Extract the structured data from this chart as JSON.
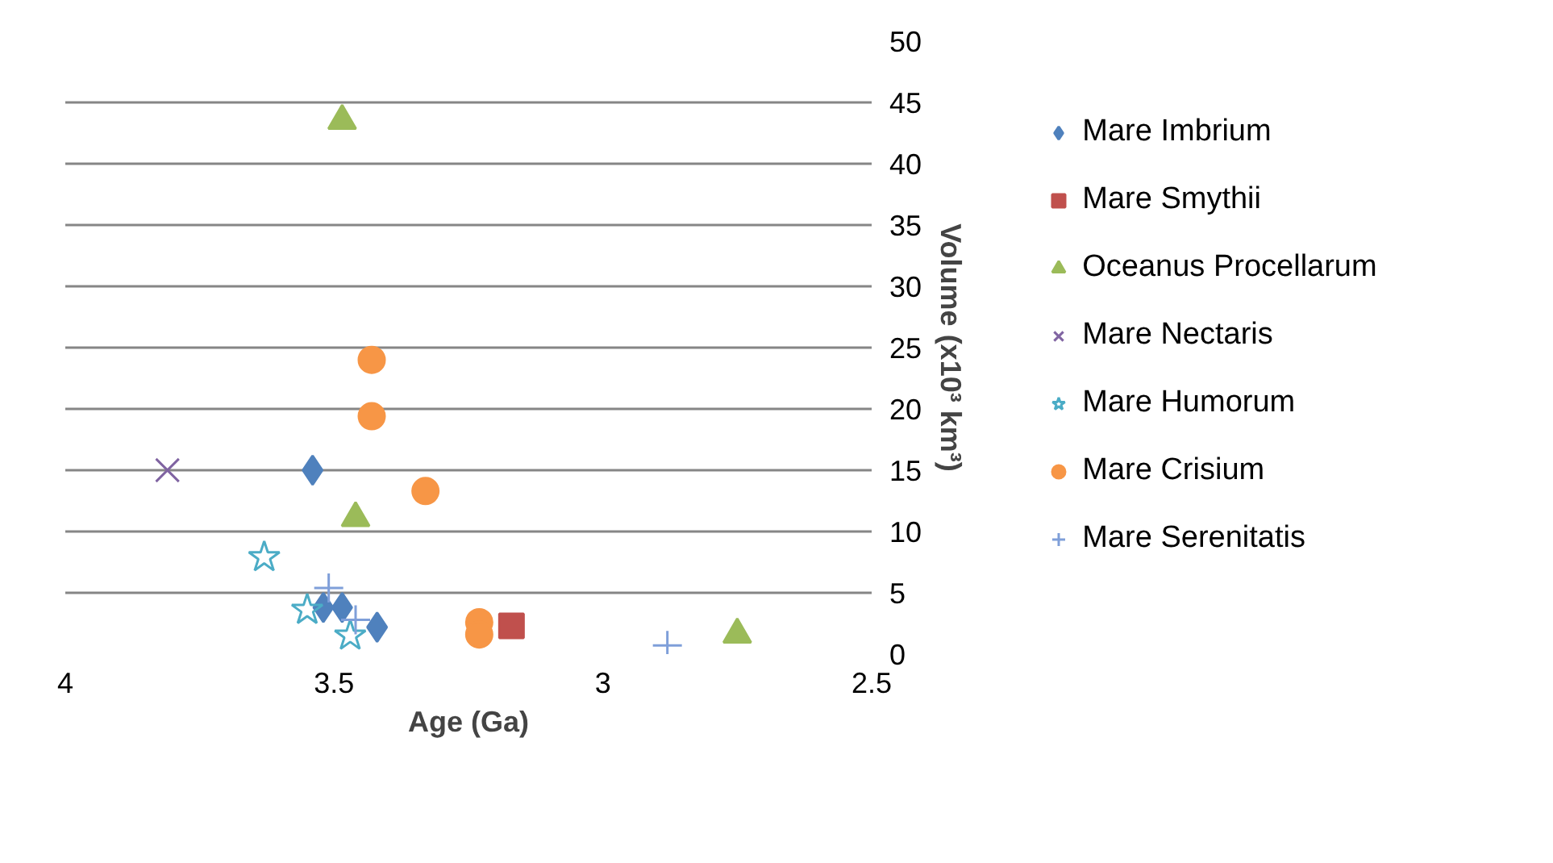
{
  "chart_data": {
    "type": "scatter",
    "xlabel": "Age (Ga)",
    "ylabel": "Volume (x10³ km³)",
    "xlim": [
      4,
      2.5
    ],
    "xticks": [
      4,
      3.5,
      3,
      2.5
    ],
    "ylim": [
      0,
      50
    ],
    "yticks": [
      0,
      5,
      10,
      15,
      20,
      25,
      30,
      35,
      40,
      45,
      50
    ],
    "grid": "y",
    "legend": "right",
    "series": [
      {
        "name": "Mare Imbrium",
        "color": "#4f81bd",
        "marker": "diamond",
        "x": [
          3.54,
          3.52,
          3.485,
          3.42
        ],
        "values": [
          15.0,
          3.8,
          3.8,
          2.2
        ]
      },
      {
        "name": "Mare Smythii",
        "color": "#c0504d",
        "marker": "square",
        "x": [
          3.17
        ],
        "values": [
          2.3
        ]
      },
      {
        "name": "Oceanus Procellarum",
        "color": "#9bbb59",
        "marker": "triangle",
        "x": [
          3.485,
          3.46,
          2.75
        ],
        "values": [
          43.5,
          11.1,
          1.6
        ]
      },
      {
        "name": "Mare Nectaris",
        "color": "#8064a2",
        "marker": "x",
        "x": [
          3.81
        ],
        "values": [
          15.0
        ]
      },
      {
        "name": "Mare Humorum",
        "color": "#4bacc6",
        "marker": "star",
        "x": [
          3.63,
          3.55,
          3.47
        ],
        "values": [
          7.9,
          3.6,
          1.5
        ]
      },
      {
        "name": "Mare Crisium",
        "color": "#f79646",
        "marker": "circle",
        "x": [
          3.43,
          3.43,
          3.33,
          3.23,
          3.23
        ],
        "values": [
          24.0,
          19.4,
          13.3,
          2.6,
          1.6
        ]
      },
      {
        "name": "Mare Serenitatis",
        "color": "#7f9fd9",
        "marker": "cross",
        "x": [
          3.51,
          3.46,
          2.88
        ],
        "values": [
          5.4,
          2.8,
          0.7
        ]
      }
    ]
  }
}
